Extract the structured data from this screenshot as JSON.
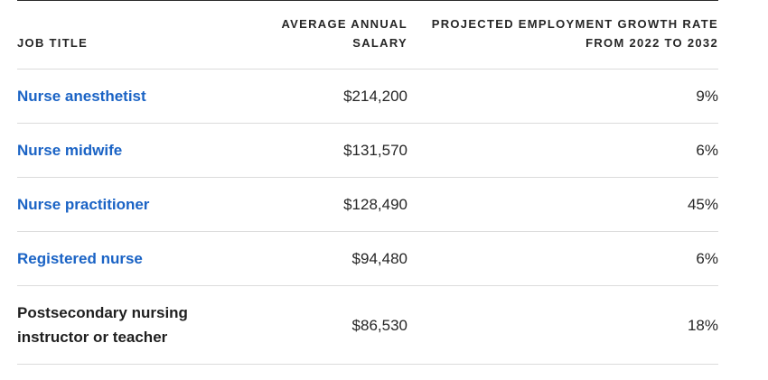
{
  "table": {
    "headers": {
      "job_title": "JOB TITLE",
      "salary_line1": "AVERAGE ANNUAL",
      "salary_line2": "SALARY",
      "growth_line1": "PROJECTED EMPLOYMENT GROWTH RATE",
      "growth_line2": "FROM 2022 TO 2032"
    },
    "rows": [
      {
        "title": "Nurse anesthetist",
        "salary": "$214,200",
        "growth": "9%"
      },
      {
        "title": "Nurse midwife",
        "salary": "$131,570",
        "growth": "6%"
      },
      {
        "title": "Nurse practitioner",
        "salary": "$128,490",
        "growth": "45%"
      },
      {
        "title": "Registered nurse",
        "salary": "$94,480",
        "growth": "6%"
      },
      {
        "title_line1": "Postsecondary nursing",
        "title_line2": "instructor or teacher",
        "salary": "$86,530",
        "growth": "18%"
      }
    ]
  },
  "colors": {
    "link": "#1a63c5",
    "text": "#1f1f1f",
    "divider": "#dcdcdc"
  }
}
